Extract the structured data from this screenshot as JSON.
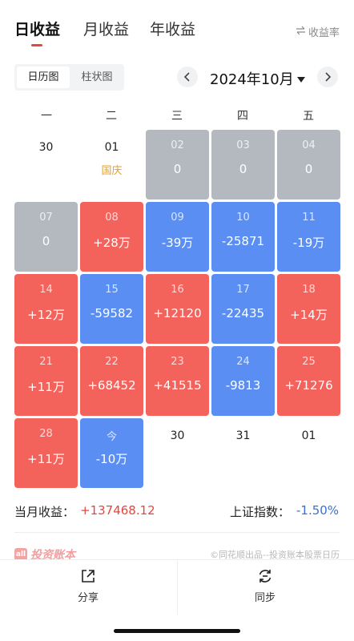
{
  "tabs": [
    {
      "label": "日收益",
      "active": true
    },
    {
      "label": "月收益",
      "active": false
    },
    {
      "label": "年收益",
      "active": false
    }
  ],
  "rate_toggle": {
    "icon": "swap-arrows-icon",
    "label": "收益率"
  },
  "view_switch": {
    "calendar": "日历图",
    "bar": "柱状图",
    "selected": "日历图"
  },
  "month_nav": {
    "prev_icon": "chevron-left-icon",
    "next_icon": "chevron-right-icon",
    "label": "2024年10月",
    "dropdown_icon": "caret-down-icon"
  },
  "weekdays": [
    "一",
    "二",
    "三",
    "四",
    "五"
  ],
  "cells": [
    {
      "date": "30",
      "value": "",
      "type": "plain"
    },
    {
      "date": "01",
      "value": "国庆",
      "type": "holiday"
    },
    {
      "date": "02",
      "value": "0",
      "type": "gray"
    },
    {
      "date": "03",
      "value": "0",
      "type": "gray"
    },
    {
      "date": "04",
      "value": "0",
      "type": "gray"
    },
    {
      "date": "07",
      "value": "0",
      "type": "gray"
    },
    {
      "date": "08",
      "value": "+28万",
      "type": "red"
    },
    {
      "date": "09",
      "value": "-39万",
      "type": "blue"
    },
    {
      "date": "10",
      "value": "-25871",
      "type": "blue"
    },
    {
      "date": "11",
      "value": "-19万",
      "type": "blue"
    },
    {
      "date": "14",
      "value": "+12万",
      "type": "red"
    },
    {
      "date": "15",
      "value": "-59582",
      "type": "blue"
    },
    {
      "date": "16",
      "value": "+12120",
      "type": "red"
    },
    {
      "date": "17",
      "value": "-22435",
      "type": "blue"
    },
    {
      "date": "18",
      "value": "+14万",
      "type": "red"
    },
    {
      "date": "21",
      "value": "+11万",
      "type": "red"
    },
    {
      "date": "22",
      "value": "+68452",
      "type": "red"
    },
    {
      "date": "23",
      "value": "+41515",
      "type": "red"
    },
    {
      "date": "24",
      "value": "-9813",
      "type": "blue"
    },
    {
      "date": "25",
      "value": "+71276",
      "type": "red"
    },
    {
      "date": "28",
      "value": "+11万",
      "type": "red"
    },
    {
      "date": "今",
      "value": "-10万",
      "type": "blue"
    },
    {
      "date": "30",
      "value": "",
      "type": "plain"
    },
    {
      "date": "31",
      "value": "",
      "type": "plain"
    },
    {
      "date": "01",
      "value": "",
      "type": "plain"
    }
  ],
  "summary": {
    "month_label": "当月收益：",
    "month_value": "+137468.12",
    "index_label": "上证指数：",
    "index_value": "-1.50%"
  },
  "footer": {
    "brand": "投资账本",
    "brand_icon_text": "all",
    "credit": "©同花顺出品--投资账本股票日历"
  },
  "bottom_bar": {
    "share": {
      "label": "分享",
      "icon": "share-icon"
    },
    "sync": {
      "label": "同步",
      "icon": "sync-icon"
    }
  },
  "colors": {
    "red": "#f4625c",
    "blue": "#5b8ef2",
    "gray": "#b4b8bf",
    "accent": "#e8453c",
    "holiday": "#e0a12e"
  }
}
